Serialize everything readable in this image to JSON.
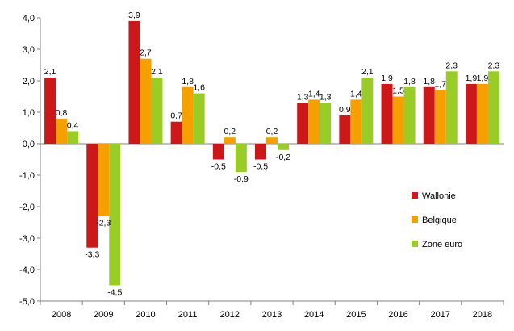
{
  "chart_data": {
    "type": "bar",
    "categories": [
      "2008",
      "2009",
      "2010",
      "2011",
      "2012",
      "2013",
      "2014",
      "2015",
      "2016",
      "2017",
      "2018"
    ],
    "series": [
      {
        "name": "Wallonie",
        "color": "#cc1818",
        "values": [
          2.1,
          -3.3,
          3.9,
          0.7,
          -0.5,
          -0.5,
          1.3,
          0.9,
          1.9,
          1.8,
          1.9
        ],
        "labels": [
          "2,1",
          "-3,3",
          "3,9",
          "0,7",
          "-0,5",
          "-0,5",
          "1,3",
          "0,9",
          "1,9",
          "1,8",
          "1,9"
        ]
      },
      {
        "name": "Belgique",
        "color": "#f5a000",
        "values": [
          0.8,
          -2.3,
          2.7,
          1.8,
          0.2,
          0.2,
          1.4,
          1.4,
          1.5,
          1.7,
          1.9
        ],
        "labels": [
          "0,8",
          "-2,3",
          "2,7",
          "1,8",
          "0,2",
          "0,2",
          "1,4",
          "1,4",
          "1,5",
          "1,7",
          "1,9"
        ]
      },
      {
        "name": "Zone euro",
        "color": "#9acc28",
        "values": [
          0.4,
          -4.5,
          2.1,
          1.6,
          -0.9,
          -0.2,
          1.3,
          2.1,
          1.8,
          2.3,
          2.3
        ],
        "labels": [
          "0,4",
          "-4,5",
          "2,1",
          "1,6",
          "-0,9",
          "-0,2",
          "1,3",
          "2,1",
          "1,8",
          "2,3",
          "2,3"
        ]
      }
    ],
    "y_ticks": [
      {
        "value": 4,
        "label": "4,0"
      },
      {
        "value": 3,
        "label": "3,0"
      },
      {
        "value": 2,
        "label": "2,0"
      },
      {
        "value": 1,
        "label": "1,0"
      },
      {
        "value": 0,
        "label": "0,0"
      },
      {
        "value": -1,
        "label": "-1,0"
      },
      {
        "value": -2,
        "label": "-2,0"
      },
      {
        "value": -3,
        "label": "-3,0"
      },
      {
        "value": -4,
        "label": "-4,0"
      },
      {
        "value": -5,
        "label": "-5,0"
      }
    ],
    "ylim": [
      -5,
      4
    ],
    "title": "",
    "xlabel": "",
    "ylabel": "",
    "grid": false,
    "legend_position": "right"
  }
}
